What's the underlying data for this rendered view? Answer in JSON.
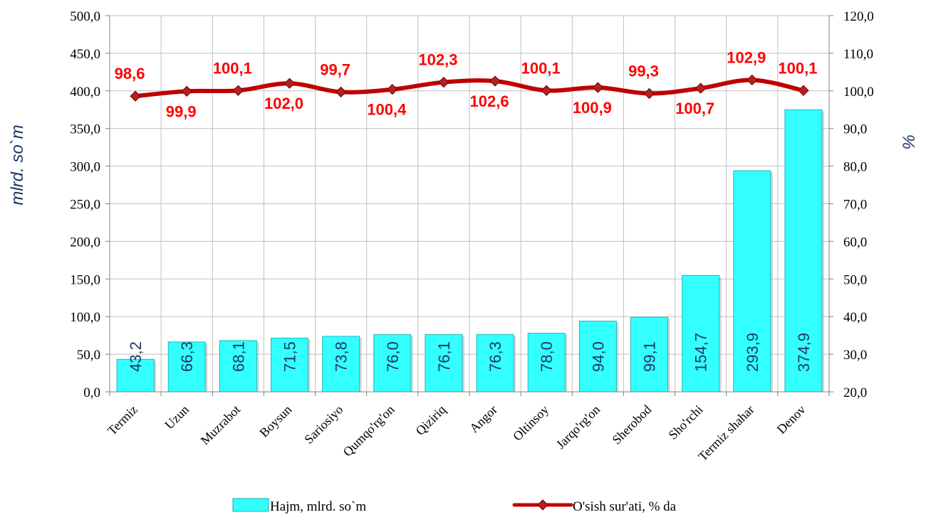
{
  "chart_data": {
    "type": "bar",
    "categories": [
      "Termiz",
      "Uzun",
      "Muzrabot",
      "Boysun",
      "Sariosiyo",
      "Qumqo'rg'on",
      "Qiziriq",
      "Angor",
      "Oltinsoy",
      "Jarqo'rg'on",
      "Sherobod",
      "Sho'rchi",
      "Termiz shahar",
      "Denov"
    ],
    "series": [
      {
        "name": "Hajm, mlrd. so`m",
        "type": "bar",
        "axis": "left",
        "color": "#33ffff",
        "values": [
          43.2,
          66.3,
          68.1,
          71.5,
          73.8,
          76.0,
          76.1,
          76.3,
          78.0,
          94.0,
          99.1,
          154.7,
          293.9,
          374.9
        ],
        "labels": [
          "43,2",
          "66,3",
          "68,1",
          "71,5",
          "73,8",
          "76,0",
          "76,1",
          "76,3",
          "78,0",
          "94,0",
          "99,1",
          "154,7",
          "293,9",
          "374,9"
        ]
      },
      {
        "name": "O'sish sur'ati, % da",
        "type": "line",
        "axis": "right",
        "color": "#c00000",
        "values": [
          98.6,
          99.9,
          100.1,
          102.0,
          99.7,
          100.4,
          102.3,
          102.6,
          100.1,
          100.9,
          99.3,
          100.7,
          102.9,
          100.1
        ],
        "labels": [
          "98,6",
          "99,9",
          "100,1",
          "102,0",
          "99,7",
          "100,4",
          "102,3",
          "102,6",
          "100,1",
          "100,9",
          "99,3",
          "100,7",
          "102,9",
          "100,1"
        ],
        "label_side": [
          "above",
          "below",
          "above",
          "below",
          "above",
          "below",
          "above",
          "below",
          "above",
          "below",
          "above",
          "below",
          "above",
          "above"
        ]
      }
    ],
    "ylabel": "mlrd. so`m",
    "ylabel_right": "%",
    "ylim": [
      0,
      500
    ],
    "ylim_right": [
      20,
      120
    ],
    "yticks": [
      "0,0",
      "50,0",
      "100,0",
      "150,0",
      "200,0",
      "250,0",
      "300,0",
      "350,0",
      "400,0",
      "450,0",
      "500,0"
    ],
    "yticks_right": [
      "20,0",
      "30,0",
      "40,0",
      "50,0",
      "60,0",
      "70,0",
      "80,0",
      "90,0",
      "100,0",
      "110,0",
      "120,0"
    ],
    "grid": true,
    "legend": "bottom"
  }
}
